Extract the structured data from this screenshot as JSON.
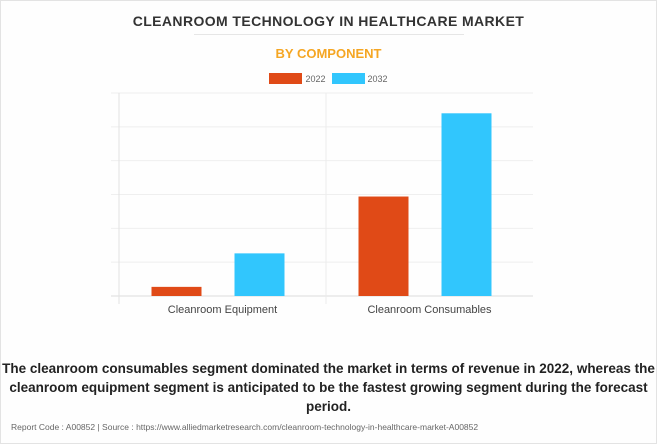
{
  "chart_data": {
    "type": "bar",
    "title": "CLEANROOM TECHNOLOGY IN HEALTHCARE MARKET",
    "subtitle": "BY COMPONENT",
    "categories": [
      "Cleanroom Equipment",
      "Cleanroom Consumables"
    ],
    "series": [
      {
        "name": "2022",
        "color": "#e04a17",
        "values": [
          0.27,
          2.94
        ]
      },
      {
        "name": "2032",
        "color": "#31c6fd",
        "values": [
          1.26,
          5.4
        ]
      }
    ],
    "xlabel": "",
    "ylabel": "",
    "ylim": [
      0,
      6
    ],
    "grid": true,
    "legend": "top"
  },
  "caption": "The cleanroom consumables segment dominated the market in terms of revenue in 2022, whereas the cleanroom equipment segment is anticipated to be the fastest growing segment during the forecast period.",
  "footer": "Report Code : A00852  |  Source : https://www.alliedmarketresearch.com/cleanroom-technology-in-healthcare-market-A00852"
}
